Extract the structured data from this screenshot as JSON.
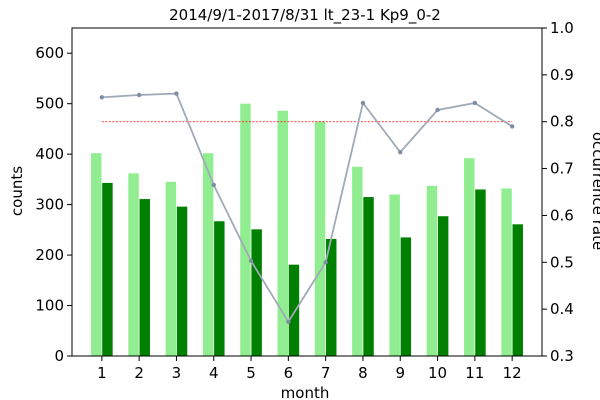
{
  "chart_data": {
    "type": "bar",
    "title": "2014/9/1-2017/8/31  lt_23-1  Kp9_0-2",
    "xlabel": "month",
    "ylabel": "counts",
    "y2label": "occurrence rate",
    "categories": [
      "1",
      "2",
      "3",
      "4",
      "5",
      "6",
      "7",
      "8",
      "9",
      "10",
      "11",
      "12"
    ],
    "ylim": [
      0,
      650
    ],
    "y2lim": [
      0.3,
      1.0
    ],
    "yticks": [
      "0",
      "100",
      "200",
      "300",
      "400",
      "500",
      "600"
    ],
    "y2ticks": [
      "0.3",
      "0.4",
      "0.5",
      "0.6",
      "0.7",
      "0.8",
      "0.9",
      "1.0"
    ],
    "series": [
      {
        "values": [
          402,
          362,
          345,
          402,
          500,
          486,
          465,
          375,
          320,
          337,
          392,
          332
        ],
        "color": "#90ee90",
        "axis": "left"
      },
      {
        "values": [
          343,
          311,
          296,
          267,
          251,
          181,
          232,
          315,
          235,
          277,
          330,
          261
        ],
        "color": "#008000",
        "axis": "left"
      },
      {
        "type": "line",
        "values": [
          0.852,
          0.857,
          0.86,
          0.665,
          0.503,
          0.373,
          0.5,
          0.84,
          0.735,
          0.825,
          0.84,
          0.79
        ],
        "color": "#a0aab8",
        "axis": "right"
      },
      {
        "type": "hline",
        "value": 0.8,
        "color": "#ff0000",
        "axis": "right"
      }
    ],
    "grid": false
  }
}
